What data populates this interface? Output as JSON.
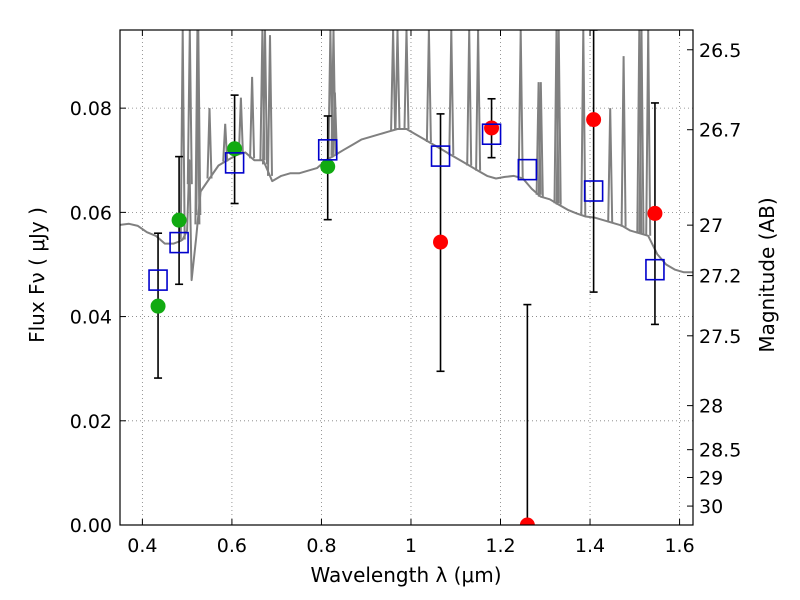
{
  "chart_data": {
    "type": "scatter",
    "xlabel": "Wavelength  λ (μm)",
    "ylabel": "Flux  Fν  ( μJy )",
    "ylabel_right": "Magnitude (AB)",
    "xlim": [
      0.35,
      1.63
    ],
    "ylim": [
      0.0,
      0.095
    ],
    "grid": true,
    "x_ticks": [
      0.4,
      0.6,
      0.8,
      1.0,
      1.2,
      1.4,
      1.6
    ],
    "x_tick_labels": [
      "0.4",
      "0.6",
      "0.8",
      "1",
      "1.2",
      "1.4",
      "1.6"
    ],
    "y_ticks": [
      0.0,
      0.02,
      0.04,
      0.06,
      0.08
    ],
    "y_tick_labels": [
      "0.00",
      "0.02",
      "0.04",
      "0.06",
      "0.08"
    ],
    "right_ticks": [
      {
        "label": "26.5",
        "mag": 26.5
      },
      {
        "label": "26.7",
        "mag": 26.7
      },
      {
        "label": "27",
        "mag": 27.0
      },
      {
        "label": "27.2",
        "mag": 27.2
      },
      {
        "label": "27.5",
        "mag": 27.5
      },
      {
        "label": "28",
        "mag": 28.0
      },
      {
        "label": "28.5",
        "mag": 28.5
      },
      {
        "label": "29",
        "mag": 29.0
      },
      {
        "label": "30",
        "mag": 30.0
      }
    ],
    "colors": {
      "sed": "#808080",
      "observed_good": "#11aa11",
      "observed_other": "#ff0000",
      "model": "#0000cc",
      "errorbar": "#000000",
      "grid": "#7f7f7f"
    },
    "series": [
      {
        "style": "line",
        "points": [
          [
            0.35,
            0.0576
          ],
          [
            0.37,
            0.0578
          ],
          [
            0.39,
            0.0574
          ],
          [
            0.41,
            0.0562
          ],
          [
            0.43,
            0.0555
          ],
          [
            0.45,
            0.054
          ],
          [
            0.47,
            0.054
          ],
          [
            0.485,
            0.0545
          ],
          [
            0.49,
            0.0548
          ],
          [
            0.5,
            0.0565
          ],
          [
            0.505,
            0.07
          ],
          [
            0.51,
            0.047
          ],
          [
            0.52,
            0.055
          ],
          [
            0.53,
            0.064
          ],
          [
            0.55,
            0.0665
          ],
          [
            0.57,
            0.069
          ],
          [
            0.59,
            0.07
          ],
          [
            0.61,
            0.071
          ],
          [
            0.63,
            0.0715
          ],
          [
            0.65,
            0.07
          ],
          [
            0.67,
            0.07
          ],
          [
            0.69,
            0.066
          ],
          [
            0.71,
            0.067
          ],
          [
            0.73,
            0.0675
          ],
          [
            0.75,
            0.0675
          ],
          [
            0.77,
            0.068
          ],
          [
            0.79,
            0.0685
          ],
          [
            0.81,
            0.07
          ],
          [
            0.83,
            0.071
          ],
          [
            0.85,
            0.072
          ],
          [
            0.87,
            0.073
          ],
          [
            0.89,
            0.074
          ],
          [
            0.91,
            0.0745
          ],
          [
            0.93,
            0.075
          ],
          [
            0.95,
            0.0755
          ],
          [
            0.97,
            0.076
          ],
          [
            0.99,
            0.076
          ],
          [
            1.01,
            0.075
          ],
          [
            1.03,
            0.074
          ],
          [
            1.05,
            0.073
          ],
          [
            1.07,
            0.072
          ],
          [
            1.09,
            0.071
          ],
          [
            1.11,
            0.07
          ],
          [
            1.13,
            0.069
          ],
          [
            1.15,
            0.068
          ],
          [
            1.17,
            0.067
          ],
          [
            1.19,
            0.0665
          ],
          [
            1.21,
            0.0668
          ],
          [
            1.23,
            0.067
          ],
          [
            1.25,
            0.0665
          ],
          [
            1.27,
            0.0645
          ],
          [
            1.29,
            0.063
          ],
          [
            1.31,
            0.0625
          ],
          [
            1.33,
            0.0615
          ],
          [
            1.35,
            0.0605
          ],
          [
            1.37,
            0.0598
          ],
          [
            1.39,
            0.0592
          ],
          [
            1.41,
            0.059
          ],
          [
            1.43,
            0.0585
          ],
          [
            1.45,
            0.058
          ],
          [
            1.47,
            0.0575
          ],
          [
            1.49,
            0.0565
          ],
          [
            1.51,
            0.056
          ],
          [
            1.53,
            0.0555
          ],
          [
            1.55,
            0.052
          ],
          [
            1.57,
            0.05
          ],
          [
            1.59,
            0.049
          ],
          [
            1.61,
            0.0485
          ],
          [
            1.63,
            0.0485
          ]
        ],
        "emission_lines": [
          [
            0.49,
            0.095
          ],
          [
            0.506,
            0.095
          ],
          [
            0.523,
            0.095
          ],
          [
            0.525,
            0.095
          ],
          [
            0.55,
            0.08
          ],
          [
            0.585,
            0.077
          ],
          [
            0.62,
            0.082
          ],
          [
            0.645,
            0.086
          ],
          [
            0.668,
            0.095
          ],
          [
            0.674,
            0.095
          ],
          [
            0.685,
            0.094
          ],
          [
            0.82,
            0.095
          ],
          [
            0.827,
            0.095
          ],
          [
            0.83,
            0.083
          ],
          [
            0.96,
            0.095
          ],
          [
            0.97,
            0.095
          ],
          [
            0.99,
            0.095
          ],
          [
            1.04,
            0.095
          ],
          [
            1.09,
            0.095
          ],
          [
            1.13,
            0.095
          ],
          [
            1.15,
            0.095
          ],
          [
            1.245,
            0.095
          ],
          [
            1.285,
            0.085
          ],
          [
            1.29,
            0.085
          ],
          [
            1.325,
            0.095
          ],
          [
            1.33,
            0.095
          ],
          [
            1.385,
            0.095
          ],
          [
            1.445,
            0.08
          ],
          [
            1.475,
            0.09
          ],
          [
            1.51,
            0.095
          ],
          [
            1.515,
            0.095
          ],
          [
            1.53,
            0.095
          ]
        ]
      },
      {
        "style": "errorbars",
        "points": [
          {
            "x": 0.435,
            "y": 0.042,
            "lo": 0.0282,
            "hi": 0.056
          },
          {
            "x": 0.482,
            "y": 0.0585,
            "lo": 0.0462,
            "hi": 0.0707
          },
          {
            "x": 0.606,
            "y": 0.0722,
            "lo": 0.0617,
            "hi": 0.0825
          },
          {
            "x": 0.814,
            "y": 0.0688,
            "lo": 0.0586,
            "hi": 0.0785
          },
          {
            "x": 1.066,
            "y": 0.0543,
            "lo": 0.0295,
            "hi": 0.0789
          },
          {
            "x": 1.18,
            "y": 0.0762,
            "lo": 0.0705,
            "hi": 0.0818
          },
          {
            "x": 1.26,
            "y": 0.0,
            "lo": 0.0,
            "hi": 0.0423
          },
          {
            "x": 1.408,
            "y": 0.0778,
            "lo": 0.0447,
            "hi": 0.095
          },
          {
            "x": 1.545,
            "y": 0.0598,
            "lo": 0.0385,
            "hi": 0.081
          }
        ]
      },
      {
        "style": "circles",
        "color_key": "observed_good",
        "points": [
          [
            0.435,
            0.042
          ],
          [
            0.482,
            0.0585
          ],
          [
            0.606,
            0.0722
          ],
          [
            0.814,
            0.0688
          ]
        ]
      },
      {
        "style": "circles",
        "color_key": "observed_other",
        "points": [
          [
            1.066,
            0.0543
          ],
          [
            1.18,
            0.0762
          ],
          [
            1.26,
            0.0
          ],
          [
            1.408,
            0.0778
          ],
          [
            1.545,
            0.0598
          ]
        ]
      },
      {
        "style": "squares",
        "color_key": "model",
        "points": [
          [
            0.435,
            0.047
          ],
          [
            0.482,
            0.0542
          ],
          [
            0.606,
            0.0695
          ],
          [
            0.814,
            0.072
          ],
          [
            1.066,
            0.0708
          ],
          [
            1.18,
            0.075
          ],
          [
            1.26,
            0.0682
          ],
          [
            1.408,
            0.0641
          ],
          [
            1.545,
            0.049
          ]
        ]
      }
    ]
  }
}
